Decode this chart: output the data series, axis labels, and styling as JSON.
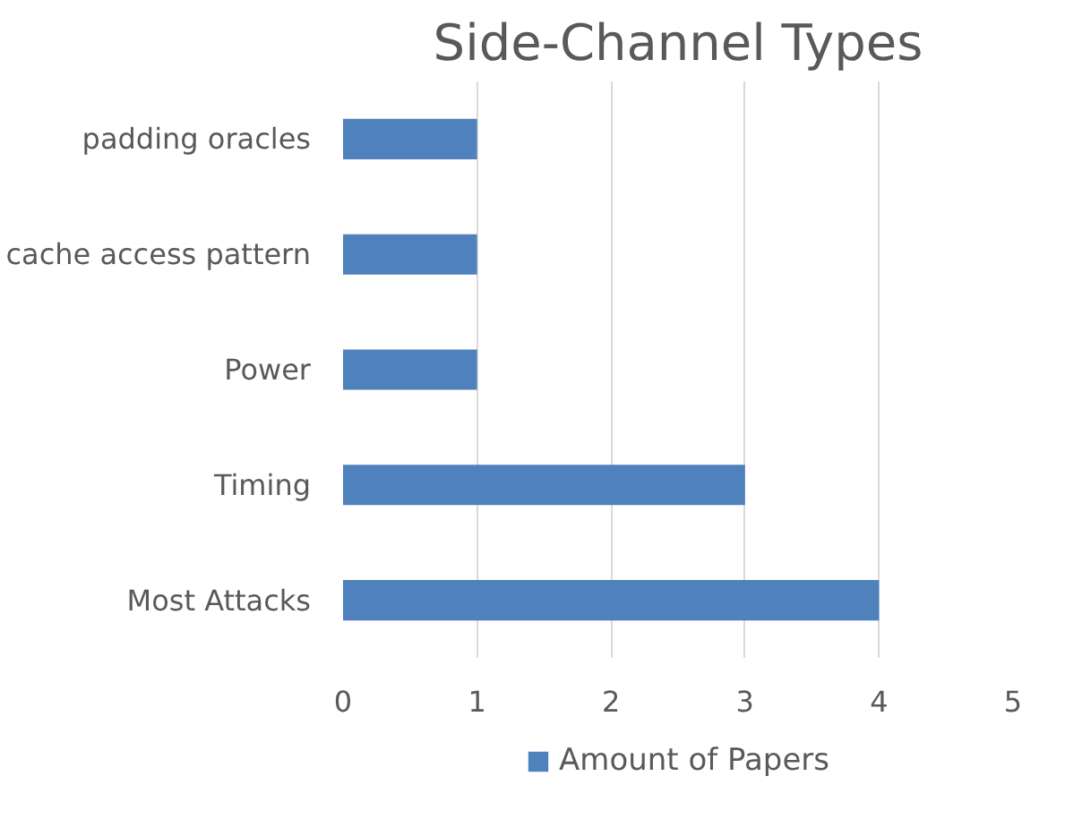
{
  "chart_data": {
    "type": "bar",
    "orientation": "horizontal",
    "title": "Side-Channel Types",
    "categories": [
      "padding oracles",
      "cache access pattern",
      "Power",
      "Timing",
      "Most Attacks"
    ],
    "series": [
      {
        "name": "Amount of Papers",
        "color": "#4f81bd",
        "values": [
          1,
          1,
          1,
          3,
          4
        ]
      }
    ],
    "xlim": [
      0,
      5
    ],
    "xticks": [
      0,
      1,
      2,
      3,
      4,
      5
    ],
    "grid": "x",
    "legend": "bottom"
  }
}
